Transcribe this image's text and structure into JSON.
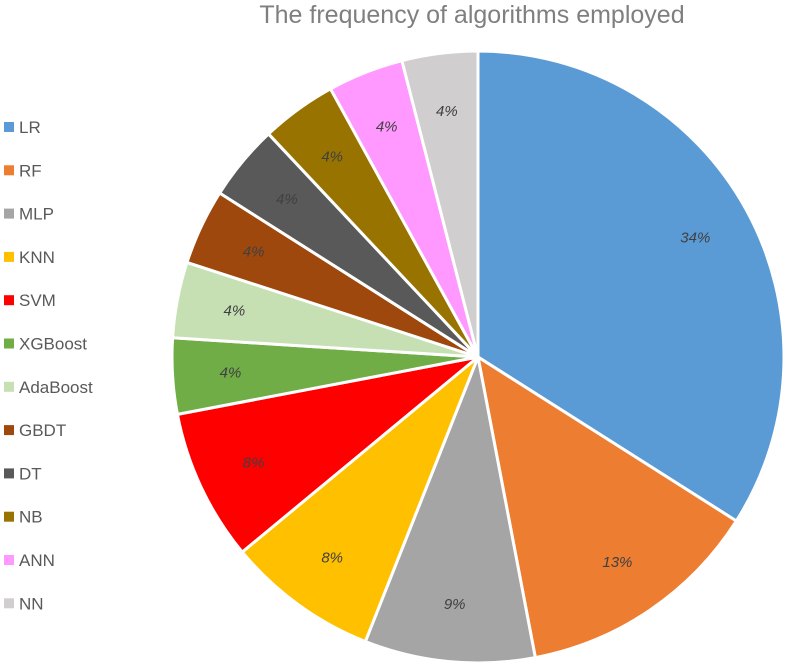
{
  "chart_data": {
    "type": "pie",
    "title": "The frequency of algorithms employed",
    "legend_position": "left",
    "start_angle_deg": 0,
    "direction": "clockwise",
    "slices": [
      {
        "label": "LR",
        "value": 34,
        "display": "34%",
        "color": "#5b9bd5"
      },
      {
        "label": "RF",
        "value": 13,
        "display": "13%",
        "color": "#ed7d31"
      },
      {
        "label": "MLP",
        "value": 9,
        "display": "9%",
        "color": "#a5a5a5"
      },
      {
        "label": "KNN",
        "value": 8,
        "display": "8%",
        "color": "#ffc000"
      },
      {
        "label": "SVM",
        "value": 8,
        "display": "8%",
        "color": "#ff0000"
      },
      {
        "label": "XGBoost",
        "value": 4,
        "display": "4%",
        "color": "#70ad47"
      },
      {
        "label": "AdaBoost",
        "value": 4,
        "display": "4%",
        "color": "#c6e0b4"
      },
      {
        "label": "GBDT",
        "value": 4,
        "display": "4%",
        "color": "#9e480e"
      },
      {
        "label": "DT",
        "value": 4,
        "display": "4%",
        "color": "#595959"
      },
      {
        "label": "NB",
        "value": 4,
        "display": "4%",
        "color": "#997300"
      },
      {
        "label": "ANN",
        "value": 4,
        "display": "4%",
        "color": "#ff99ff"
      },
      {
        "label": "NN",
        "value": 4,
        "display": "4%",
        "color": "#d0cece"
      }
    ]
  }
}
